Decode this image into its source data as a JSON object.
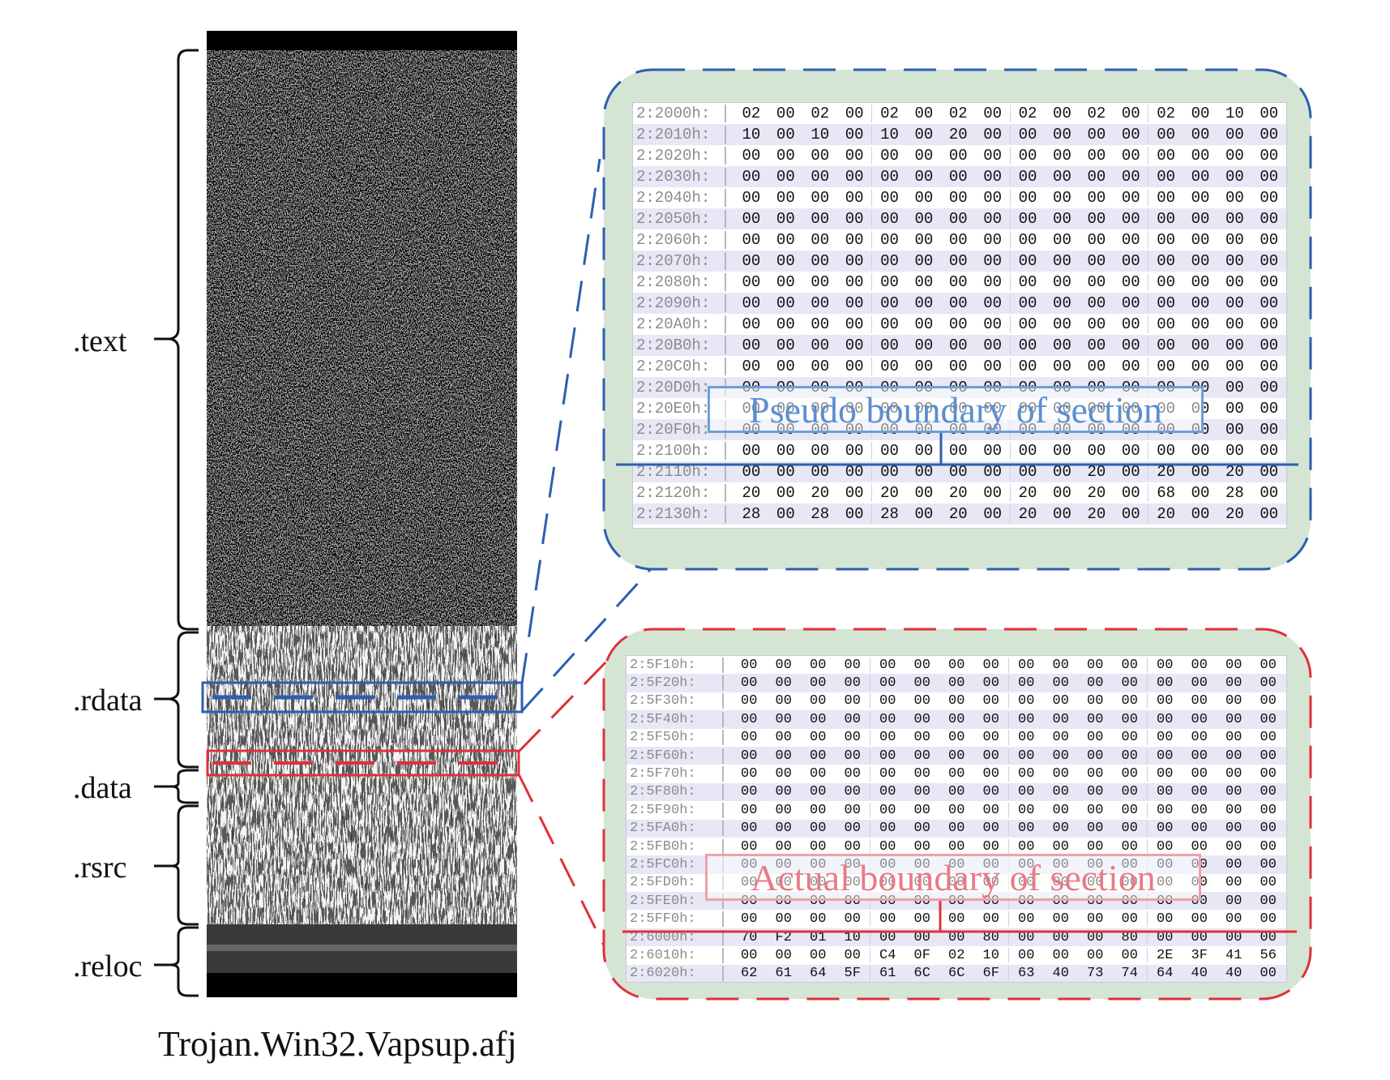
{
  "sections": [
    {
      "label": ".text"
    },
    {
      "label": ".rdata"
    },
    {
      "label": ".data"
    },
    {
      "label": ".rsrc"
    },
    {
      "label": ".reloc"
    }
  ],
  "file_name": "Trojan.Win32.Vapsup.afj",
  "colors": {
    "pseudo": "#2d5fb0",
    "actual": "#e0303a",
    "panel_fill": "#d4e5d4",
    "row_alt": "#e7e7f6"
  },
  "top_hex": {
    "rows": [
      {
        "addr": "2:2000h:",
        "bytes": [
          "02",
          "00",
          "02",
          "00",
          "02",
          "00",
          "02",
          "00",
          "02",
          "00",
          "02",
          "00",
          "02",
          "00",
          "10",
          "00"
        ]
      },
      {
        "addr": "2:2010h:",
        "bytes": [
          "10",
          "00",
          "10",
          "00",
          "10",
          "00",
          "20",
          "00",
          "00",
          "00",
          "00",
          "00",
          "00",
          "00",
          "00",
          "00"
        ]
      },
      {
        "addr": "2:2020h:",
        "bytes": [
          "00",
          "00",
          "00",
          "00",
          "00",
          "00",
          "00",
          "00",
          "00",
          "00",
          "00",
          "00",
          "00",
          "00",
          "00",
          "00"
        ]
      },
      {
        "addr": "2:2030h:",
        "bytes": [
          "00",
          "00",
          "00",
          "00",
          "00",
          "00",
          "00",
          "00",
          "00",
          "00",
          "00",
          "00",
          "00",
          "00",
          "00",
          "00"
        ]
      },
      {
        "addr": "2:2040h:",
        "bytes": [
          "00",
          "00",
          "00",
          "00",
          "00",
          "00",
          "00",
          "00",
          "00",
          "00",
          "00",
          "00",
          "00",
          "00",
          "00",
          "00"
        ]
      },
      {
        "addr": "2:2050h:",
        "bytes": [
          "00",
          "00",
          "00",
          "00",
          "00",
          "00",
          "00",
          "00",
          "00",
          "00",
          "00",
          "00",
          "00",
          "00",
          "00",
          "00"
        ]
      },
      {
        "addr": "2:2060h:",
        "bytes": [
          "00",
          "00",
          "00",
          "00",
          "00",
          "00",
          "00",
          "00",
          "00",
          "00",
          "00",
          "00",
          "00",
          "00",
          "00",
          "00"
        ]
      },
      {
        "addr": "2:2070h:",
        "bytes": [
          "00",
          "00",
          "00",
          "00",
          "00",
          "00",
          "00",
          "00",
          "00",
          "00",
          "00",
          "00",
          "00",
          "00",
          "00",
          "00"
        ]
      },
      {
        "addr": "2:2080h:",
        "bytes": [
          "00",
          "00",
          "00",
          "00",
          "00",
          "00",
          "00",
          "00",
          "00",
          "00",
          "00",
          "00",
          "00",
          "00",
          "00",
          "00"
        ]
      },
      {
        "addr": "2:2090h:",
        "bytes": [
          "00",
          "00",
          "00",
          "00",
          "00",
          "00",
          "00",
          "00",
          "00",
          "00",
          "00",
          "00",
          "00",
          "00",
          "00",
          "00"
        ]
      },
      {
        "addr": "2:20A0h:",
        "bytes": [
          "00",
          "00",
          "00",
          "00",
          "00",
          "00",
          "00",
          "00",
          "00",
          "00",
          "00",
          "00",
          "00",
          "00",
          "00",
          "00"
        ]
      },
      {
        "addr": "2:20B0h:",
        "bytes": [
          "00",
          "00",
          "00",
          "00",
          "00",
          "00",
          "00",
          "00",
          "00",
          "00",
          "00",
          "00",
          "00",
          "00",
          "00",
          "00"
        ]
      },
      {
        "addr": "2:20C0h:",
        "bytes": [
          "00",
          "00",
          "00",
          "00",
          "00",
          "00",
          "00",
          "00",
          "00",
          "00",
          "00",
          "00",
          "00",
          "00",
          "00",
          "00"
        ]
      },
      {
        "addr": "2:20D0h:",
        "bytes": [
          "00",
          "00",
          "00",
          "00",
          "00",
          "00",
          "00",
          "00",
          "00",
          "00",
          "00",
          "00",
          "00",
          "00",
          "00",
          "00"
        ]
      },
      {
        "addr": "2:20E0h:",
        "bytes": [
          "00",
          "00",
          "00",
          "00",
          "00",
          "00",
          "00",
          "00",
          "00",
          "00",
          "00",
          "00",
          "00",
          "00",
          "00",
          "00"
        ]
      },
      {
        "addr": "2:20F0h:",
        "bytes": [
          "00",
          "00",
          "00",
          "00",
          "00",
          "00",
          "00",
          "00",
          "00",
          "00",
          "00",
          "00",
          "00",
          "00",
          "00",
          "00"
        ]
      },
      {
        "addr": "2:2100h:",
        "bytes": [
          "00",
          "00",
          "00",
          "00",
          "00",
          "00",
          "00",
          "00",
          "00",
          "00",
          "00",
          "00",
          "00",
          "00",
          "00",
          "00"
        ]
      },
      {
        "addr": "2:2110h:",
        "bytes": [
          "00",
          "00",
          "00",
          "00",
          "00",
          "00",
          "00",
          "00",
          "00",
          "00",
          "20",
          "00",
          "20",
          "00",
          "20",
          "00"
        ]
      },
      {
        "addr": "2:2120h:",
        "bytes": [
          "20",
          "00",
          "20",
          "00",
          "20",
          "00",
          "20",
          "00",
          "20",
          "00",
          "20",
          "00",
          "68",
          "00",
          "28",
          "00"
        ]
      },
      {
        "addr": "2:2130h:",
        "bytes": [
          "28",
          "00",
          "28",
          "00",
          "28",
          "00",
          "20",
          "00",
          "20",
          "00",
          "20",
          "00",
          "20",
          "00",
          "20",
          "00"
        ]
      }
    ]
  },
  "bottom_hex": {
    "rows": [
      {
        "addr": "2:5F10h:",
        "bytes": [
          "00",
          "00",
          "00",
          "00",
          "00",
          "00",
          "00",
          "00",
          "00",
          "00",
          "00",
          "00",
          "00",
          "00",
          "00",
          "00"
        ]
      },
      {
        "addr": "2:5F20h:",
        "bytes": [
          "00",
          "00",
          "00",
          "00",
          "00",
          "00",
          "00",
          "00",
          "00",
          "00",
          "00",
          "00",
          "00",
          "00",
          "00",
          "00"
        ]
      },
      {
        "addr": "2:5F30h:",
        "bytes": [
          "00",
          "00",
          "00",
          "00",
          "00",
          "00",
          "00",
          "00",
          "00",
          "00",
          "00",
          "00",
          "00",
          "00",
          "00",
          "00"
        ]
      },
      {
        "addr": "2:5F40h:",
        "bytes": [
          "00",
          "00",
          "00",
          "00",
          "00",
          "00",
          "00",
          "00",
          "00",
          "00",
          "00",
          "00",
          "00",
          "00",
          "00",
          "00"
        ]
      },
      {
        "addr": "2:5F50h:",
        "bytes": [
          "00",
          "00",
          "00",
          "00",
          "00",
          "00",
          "00",
          "00",
          "00",
          "00",
          "00",
          "00",
          "00",
          "00",
          "00",
          "00"
        ]
      },
      {
        "addr": "2:5F60h:",
        "bytes": [
          "00",
          "00",
          "00",
          "00",
          "00",
          "00",
          "00",
          "00",
          "00",
          "00",
          "00",
          "00",
          "00",
          "00",
          "00",
          "00"
        ]
      },
      {
        "addr": "2:5F70h:",
        "bytes": [
          "00",
          "00",
          "00",
          "00",
          "00",
          "00",
          "00",
          "00",
          "00",
          "00",
          "00",
          "00",
          "00",
          "00",
          "00",
          "00"
        ]
      },
      {
        "addr": "2:5F80h:",
        "bytes": [
          "00",
          "00",
          "00",
          "00",
          "00",
          "00",
          "00",
          "00",
          "00",
          "00",
          "00",
          "00",
          "00",
          "00",
          "00",
          "00"
        ]
      },
      {
        "addr": "2:5F90h:",
        "bytes": [
          "00",
          "00",
          "00",
          "00",
          "00",
          "00",
          "00",
          "00",
          "00",
          "00",
          "00",
          "00",
          "00",
          "00",
          "00",
          "00"
        ]
      },
      {
        "addr": "2:5FA0h:",
        "bytes": [
          "00",
          "00",
          "00",
          "00",
          "00",
          "00",
          "00",
          "00",
          "00",
          "00",
          "00",
          "00",
          "00",
          "00",
          "00",
          "00"
        ]
      },
      {
        "addr": "2:5FB0h:",
        "bytes": [
          "00",
          "00",
          "00",
          "00",
          "00",
          "00",
          "00",
          "00",
          "00",
          "00",
          "00",
          "00",
          "00",
          "00",
          "00",
          "00"
        ]
      },
      {
        "addr": "2:5FC0h:",
        "bytes": [
          "00",
          "00",
          "00",
          "00",
          "00",
          "00",
          "00",
          "00",
          "00",
          "00",
          "00",
          "00",
          "00",
          "00",
          "00",
          "00"
        ]
      },
      {
        "addr": "2:5FD0h:",
        "bytes": [
          "00",
          "00",
          "00",
          "00",
          "00",
          "00",
          "00",
          "00",
          "00",
          "00",
          "00",
          "00",
          "00",
          "00",
          "00",
          "00"
        ]
      },
      {
        "addr": "2:5FE0h:",
        "bytes": [
          "00",
          "00",
          "00",
          "00",
          "00",
          "00",
          "00",
          "00",
          "00",
          "00",
          "00",
          "00",
          "00",
          "00",
          "00",
          "00"
        ]
      },
      {
        "addr": "2:5FF0h:",
        "bytes": [
          "00",
          "00",
          "00",
          "00",
          "00",
          "00",
          "00",
          "00",
          "00",
          "00",
          "00",
          "00",
          "00",
          "00",
          "00",
          "00"
        ]
      },
      {
        "addr": "2:6000h:",
        "bytes": [
          "70",
          "F2",
          "01",
          "10",
          "00",
          "00",
          "00",
          "80",
          "00",
          "00",
          "00",
          "80",
          "00",
          "00",
          "00",
          "00"
        ]
      },
      {
        "addr": "2:6010h:",
        "bytes": [
          "00",
          "00",
          "00",
          "00",
          "C4",
          "0F",
          "02",
          "10",
          "00",
          "00",
          "00",
          "00",
          "2E",
          "3F",
          "41",
          "56"
        ]
      },
      {
        "addr": "2:6020h:",
        "bytes": [
          "62",
          "61",
          "64",
          "5F",
          "61",
          "6C",
          "6C",
          "6F",
          "63",
          "40",
          "73",
          "74",
          "64",
          "40",
          "40",
          "00"
        ]
      }
    ]
  },
  "annotations": {
    "pseudo_boundary": "Pseudo boundary of section",
    "actual_boundary": "Actual boundary of section"
  }
}
